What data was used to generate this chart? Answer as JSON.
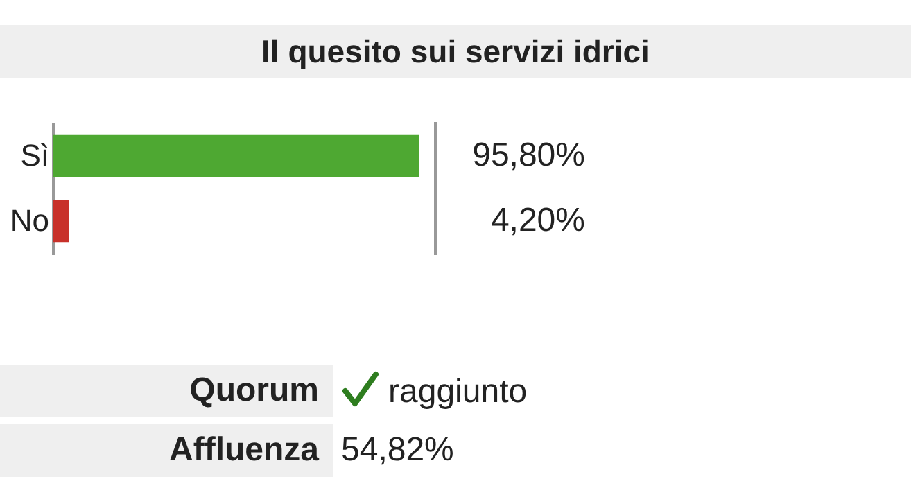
{
  "chart_data": {
    "type": "bar",
    "orientation": "horizontal",
    "title": "Il quesito sui servizi idrici",
    "categories": [
      "Sì",
      "No"
    ],
    "values": [
      95.8,
      4.2
    ],
    "colors": [
      "#4ea832",
      "#c8312a"
    ],
    "value_labels": [
      "95,80%",
      "4,20%"
    ],
    "xlim": [
      0,
      100
    ],
    "tick_labels": "y",
    "grid": false,
    "annotations": [
      "Quorum",
      "raggiunto",
      "Affluenza",
      "54,82%"
    ]
  }
}
